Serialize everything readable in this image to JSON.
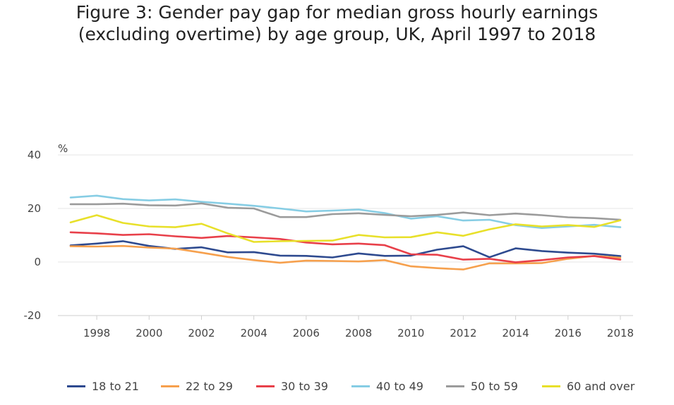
{
  "title_line1": "Figure 3: Gender pay gap for median gross hourly earnings",
  "title_line2": "(excluding overtime) by age group, UK, April 1997 to 2018",
  "chart_data": {
    "type": "line",
    "title": "Figure 3: Gender pay gap for median gross hourly earnings (excluding overtime) by age group, UK, April 1997 to 2018",
    "ylabel": "%",
    "ylim": [
      -20,
      40
    ],
    "xlim": [
      1997,
      2018
    ],
    "yticks": [
      40,
      20,
      0,
      -20
    ],
    "xticks": [
      1998,
      2000,
      2002,
      2004,
      2006,
      2008,
      2010,
      2012,
      2014,
      2016,
      2018
    ],
    "grid": "horizontal",
    "legend_position": "bottom",
    "x": [
      1997,
      1998,
      1999,
      2000,
      2001,
      2002,
      2003,
      2004,
      2005,
      2006,
      2007,
      2008,
      2009,
      2010,
      2011,
      2012,
      2013,
      2014,
      2015,
      2016,
      2017,
      2018
    ],
    "series": [
      {
        "name": "18 to 21",
        "color": "#2e4a8f",
        "values": [
          6.2,
          6.9,
          7.8,
          6.0,
          4.9,
          5.5,
          3.6,
          3.7,
          2.4,
          2.3,
          1.7,
          3.2,
          2.3,
          2.4,
          4.6,
          5.9,
          1.8,
          5.1,
          4.1,
          3.5,
          3.1,
          2.2
        ]
      },
      {
        "name": "22 to 29",
        "color": "#f6a04d",
        "values": [
          5.9,
          5.8,
          6.0,
          5.4,
          5.0,
          3.5,
          1.9,
          0.7,
          -0.3,
          0.5,
          0.4,
          0.2,
          0.7,
          -1.6,
          -2.3,
          -2.8,
          -0.5,
          -0.5,
          -0.4,
          1.2,
          2.3,
          1.6
        ]
      },
      {
        "name": "30 to 39",
        "color": "#e8404a",
        "values": [
          11.1,
          10.7,
          10.1,
          10.4,
          9.6,
          9.0,
          9.7,
          9.2,
          8.6,
          7.3,
          6.6,
          6.9,
          6.3,
          2.9,
          2.7,
          0.9,
          1.2,
          -0.1,
          0.7,
          1.7,
          2.2,
          0.9
        ]
      },
      {
        "name": "40 to 49",
        "color": "#86cde4",
        "values": [
          24.1,
          24.8,
          23.5,
          23.0,
          23.4,
          22.5,
          21.8,
          21.0,
          20.0,
          18.9,
          19.2,
          19.6,
          18.3,
          16.2,
          17.1,
          15.5,
          15.8,
          13.8,
          12.7,
          13.3,
          13.9,
          13.0
        ]
      },
      {
        "name": "50 to 59",
        "color": "#9b9b9b",
        "values": [
          21.6,
          21.6,
          21.8,
          21.2,
          21.1,
          21.9,
          20.3,
          20.0,
          16.8,
          16.8,
          17.9,
          18.2,
          17.6,
          17.1,
          17.6,
          18.5,
          17.5,
          18.1,
          17.5,
          16.7,
          16.4,
          15.8
        ]
      },
      {
        "name": "60 and over",
        "color": "#e8e02a",
        "values": [
          14.8,
          17.5,
          14.6,
          13.3,
          13.0,
          14.3,
          10.7,
          7.5,
          7.8,
          7.9,
          8.0,
          10.1,
          9.2,
          9.3,
          11.1,
          9.8,
          12.2,
          14.1,
          13.3,
          13.8,
          13.1,
          15.6
        ]
      }
    ]
  }
}
